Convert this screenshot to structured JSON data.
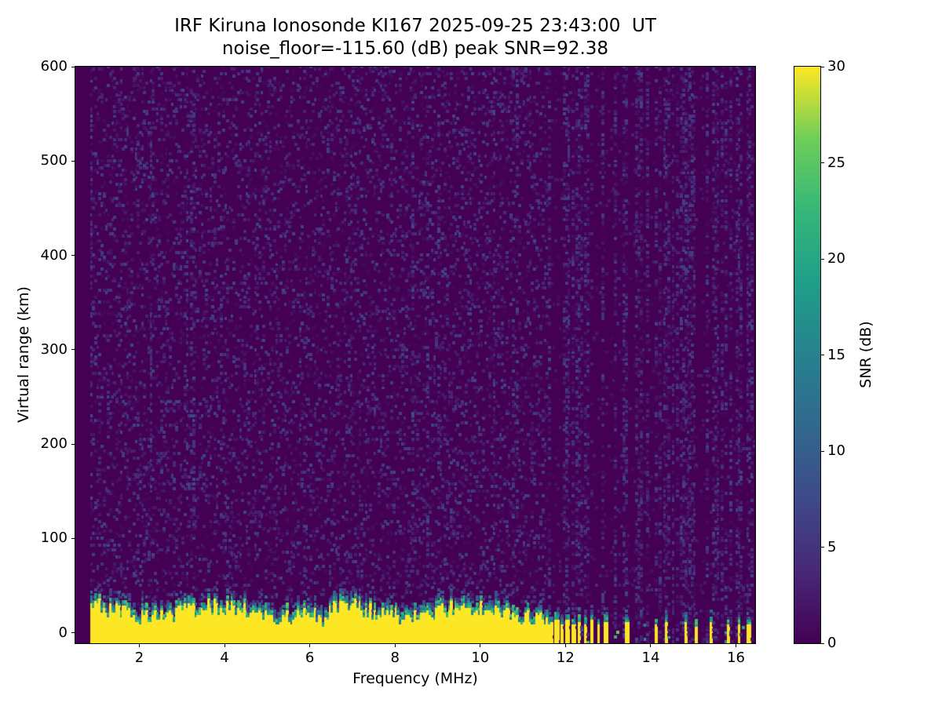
{
  "chart_data": {
    "type": "heatmap",
    "title": "IRF Kiruna Ionosonde KI167 2025-09-25 23:43:00  UT",
    "subtitle": "noise_floor=-115.60 (dB) peak SNR=92.38",
    "station": "IRF Kiruna Ionosonde KI167",
    "timestamp_ut": "2025-09-25 23:43:00",
    "noise_floor_db": -115.6,
    "peak_snr_db": 92.38,
    "xlabel": "Frequency (MHz)",
    "ylabel": "Virtual range (km)",
    "xlim": [
      0.5,
      16.45
    ],
    "ylim": [
      -11,
      600
    ],
    "xticks": [
      2,
      4,
      6,
      8,
      10,
      12,
      14,
      16
    ],
    "yticks": [
      0,
      100,
      200,
      300,
      400,
      500,
      600
    ],
    "grid": false,
    "colormap": "viridis",
    "colorbar": {
      "label": "SNR (dB)",
      "min": 0,
      "max": 30,
      "ticks": [
        0,
        5,
        10,
        15,
        20,
        25,
        30
      ],
      "position": "right"
    },
    "content": {
      "description": "Ionogram: saturated yellow ground-return band at 0-35 km virtual range continuous from 0.9 to 11.6 MHz with a notch near 6.3 MHz; intermittent narrow transmit stripes from 11.6 to 16.4 MHz; faint background speckle noise everywhere and stronger vertical RFI column striping above 11.6 MHz; no ionospheric echo trace visible.",
      "data_freq_start_mhz": 0.9,
      "ground_return": {
        "freq_range_mhz": [
          0.9,
          11.62
        ],
        "top_km_mean": 27,
        "top_km_jitter": 9,
        "dip_freq_mhz": 6.3,
        "value_db": 30
      },
      "sparse_echo_stripes": {
        "width_mhz": 0.08,
        "value_db": 30,
        "stripes_freq_height": [
          [
            11.68,
            16
          ],
          [
            11.8,
            20
          ],
          [
            11.93,
            14
          ],
          [
            12.06,
            18
          ],
          [
            12.19,
            13
          ],
          [
            12.33,
            17
          ],
          [
            12.47,
            15
          ],
          [
            12.62,
            19
          ],
          [
            12.78,
            14
          ],
          [
            12.95,
            17
          ],
          [
            13.45,
            16
          ],
          [
            14.12,
            14
          ],
          [
            14.38,
            16
          ],
          [
            14.82,
            17
          ],
          [
            15.07,
            12
          ],
          [
            15.43,
            16
          ],
          [
            15.83,
            14
          ],
          [
            16.08,
            15
          ],
          [
            16.3,
            13
          ]
        ]
      },
      "background_noise": {
        "speckle_probability": 0.22,
        "speckle_max_db": 7,
        "boosted_column_probability": 0.08
      },
      "rfi_striping": {
        "freq_range_mhz": [
          11.62,
          16.45
        ],
        "noisy_column_probability": 0.38,
        "noisy_speckle_probability": 0.5
      }
    }
  }
}
